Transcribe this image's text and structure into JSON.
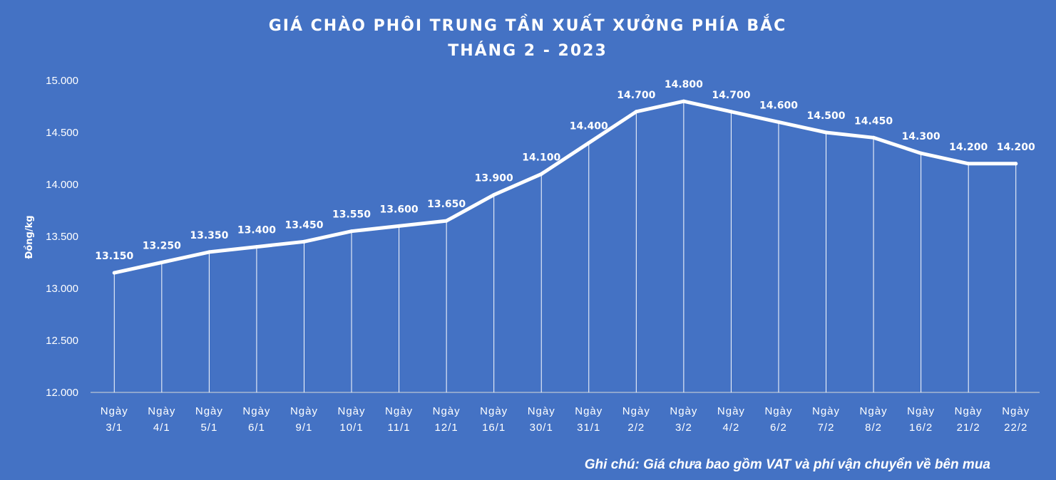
{
  "chart_data": {
    "type": "line",
    "title": "GIÁ CHÀO PHÔI TRUNG TẦN XUẤT XƯỞNG PHÍA BẮC",
    "subtitle": "THÁNG 2 - 2023",
    "ylabel": "Đồng/kg",
    "xlabel": "",
    "ylim": [
      12000,
      15000
    ],
    "ytick_step": 500,
    "ytick_labels": [
      "12.000",
      "12.500",
      "13.000",
      "13.500",
      "14.000",
      "14.500",
      "15.000"
    ],
    "categories": [
      [
        "Ngày",
        "3/1"
      ],
      [
        "Ngày",
        "4/1"
      ],
      [
        "Ngày",
        "5/1"
      ],
      [
        "Ngày",
        "6/1"
      ],
      [
        "Ngày",
        "9/1"
      ],
      [
        "Ngày",
        "10/1"
      ],
      [
        "Ngày",
        "11/1"
      ],
      [
        "Ngày",
        "12/1"
      ],
      [
        "Ngày",
        "16/1"
      ],
      [
        "Ngày",
        "30/1"
      ],
      [
        "Ngày",
        "31/1"
      ],
      [
        "Ngày",
        "2/2"
      ],
      [
        "Ngày",
        "3/2"
      ],
      [
        "Ngày",
        "4/2"
      ],
      [
        "Ngày",
        "6/2"
      ],
      [
        "Ngày",
        "7/2"
      ],
      [
        "Ngày",
        "8/2"
      ],
      [
        "Ngày",
        "16/2"
      ],
      [
        "Ngày",
        "21/2"
      ],
      [
        "Ngày",
        "22/2"
      ]
    ],
    "values": [
      13150,
      13250,
      13350,
      13400,
      13450,
      13550,
      13600,
      13650,
      13900,
      14100,
      14400,
      14700,
      14800,
      14700,
      14600,
      14500,
      14450,
      14300,
      14200,
      14200
    ],
    "data_labels": [
      "13.150",
      "13.250",
      "13.350",
      "13.400",
      "13.450",
      "13.550",
      "13.600",
      "13.650",
      "13.900",
      "14.100",
      "14.400",
      "14.700",
      "14.800",
      "14.700",
      "14.600",
      "14.500",
      "14.450",
      "14.300",
      "14.200",
      "14.200"
    ],
    "drop_lines": true,
    "grid": false,
    "legend": "none",
    "colors": {
      "background": "#4472c4",
      "line": "#ffffff",
      "text": "#ffffff"
    }
  },
  "note": "Ghi chú: Giá chưa bao gồm VAT và phí vận chuyển về bên mua"
}
